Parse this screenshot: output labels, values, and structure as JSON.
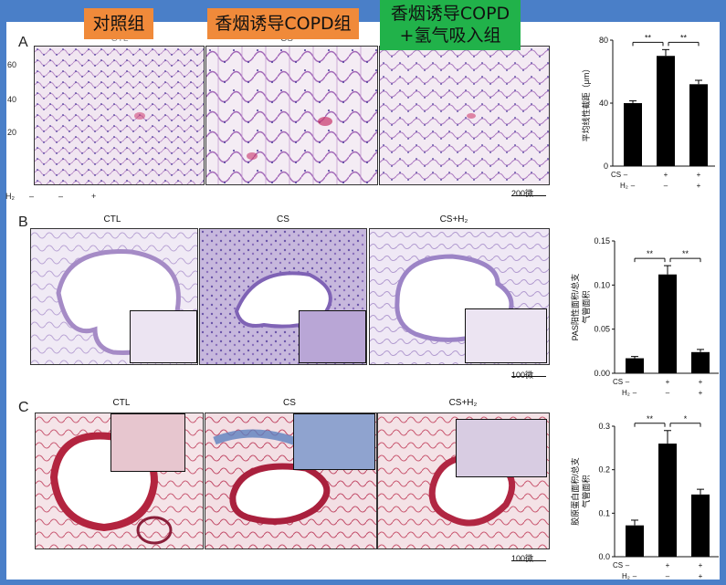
{
  "labels": {
    "control": "对照组",
    "copd": "香烟诱导COPD组",
    "copd_h2_line1": "香烟诱导COPD",
    "copd_h2_line2": "+氢气吸入组"
  },
  "panel_a": {
    "letter": "A",
    "col_titles": [
      "CTL",
      "CS"
    ],
    "y_ticks": [
      "60",
      "40",
      "20"
    ],
    "h2_row": {
      "label": "H₂",
      "values": [
        "–",
        "–",
        "+"
      ]
    },
    "scale": "200微"
  },
  "panel_b": {
    "letter": "B",
    "col_titles": [
      "CTL",
      "CS",
      "CS+H₂"
    ],
    "scale": "100微"
  },
  "panel_c": {
    "letter": "C",
    "col_titles": [
      "CTL",
      "CS",
      "CS+H₂"
    ],
    "scale": "100微"
  },
  "colors": {
    "frame": "#4a7fc8",
    "orange": "#f08a3a",
    "green": "#21b24a",
    "he_stain": "#c9a3cf",
    "pas_stain": "#b9a8d6",
    "masson_stain": "#c0304a",
    "collagen": "#6b8fc9"
  },
  "chart_data": [
    {
      "type": "bar",
      "categories": [
        "CTL",
        "CS",
        "CS+H₂"
      ],
      "values": [
        40,
        70,
        52
      ],
      "errors": [
        1.5,
        4,
        2.5
      ],
      "ylabel": "平均线性截距（μm）",
      "ylim": [
        0,
        80
      ],
      "yticks": [
        0,
        40,
        80
      ],
      "significance": [
        "**",
        "**"
      ],
      "row_labels": {
        "cs": "CS",
        "h2": "H₂"
      },
      "cs_row": [
        "–",
        "+",
        "+"
      ],
      "h2_row": [
        "–",
        "–",
        "+"
      ]
    },
    {
      "type": "bar",
      "categories": [
        "CTL",
        "CS",
        "CS+H₂"
      ],
      "values": [
        0.017,
        0.112,
        0.024
      ],
      "errors": [
        0.002,
        0.01,
        0.003
      ],
      "ylabel_line1": "PAS阳性面积/总支",
      "ylabel_line2": "气管面积",
      "ylim": [
        0,
        0.15
      ],
      "yticks": [
        "0.00",
        "0.05",
        "0.10",
        "0.15"
      ],
      "significance": [
        "**",
        "**"
      ],
      "row_labels": {
        "cs": "CS",
        "h2": "H₂"
      },
      "cs_row": [
        "–",
        "+",
        "+"
      ],
      "h2_row": [
        "–",
        "–",
        "+"
      ]
    },
    {
      "type": "bar",
      "categories": [
        "CTL",
        "CS",
        "CS+H₂"
      ],
      "values": [
        0.072,
        0.26,
        0.143
      ],
      "errors": [
        0.012,
        0.03,
        0.012
      ],
      "ylabel_line1": "胶原蛋白面积/总支",
      "ylabel_line2": "气管面积",
      "ylim": [
        0,
        0.3
      ],
      "yticks": [
        "0.0",
        "0.1",
        "0.2",
        "0.3"
      ],
      "significance": [
        "**",
        "*"
      ],
      "row_labels": {
        "cs": "CS",
        "h2": "H₂"
      },
      "cs_row": [
        "–",
        "+",
        "+"
      ],
      "h2_row": [
        "–",
        "–",
        "+"
      ]
    }
  ]
}
